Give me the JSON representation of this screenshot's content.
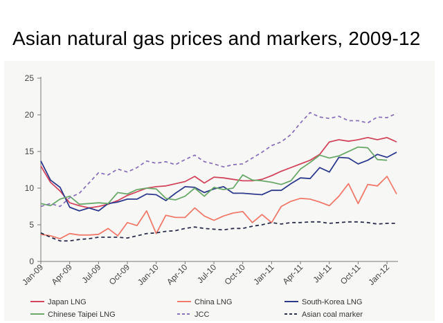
{
  "title": "Asian natural gas prices and markers, 2009-12",
  "chart_data": {
    "type": "line",
    "title": "Asian natural gas prices and markers, 2009-12",
    "xlabel": "",
    "ylabel": "",
    "ylim": [
      0,
      25
    ],
    "yticks": [
      0,
      5,
      10,
      15,
      20,
      25
    ],
    "grid": false,
    "legend_position": "bottom",
    "categories": [
      "Jan-09",
      "Feb-09",
      "Mar-09",
      "Apr-09",
      "May-09",
      "Jun-09",
      "Jul-09",
      "Aug-09",
      "Sep-09",
      "Oct-09",
      "Nov-09",
      "Dec-09",
      "Jan-10",
      "Feb-10",
      "Mar-10",
      "Apr-10",
      "May-10",
      "Jun-10",
      "Jul-10",
      "Aug-10",
      "Sep-10",
      "Oct-10",
      "Nov-10",
      "Dec-10",
      "Jan-11",
      "Feb-11",
      "Mar-11",
      "Apr-11",
      "May-11",
      "Jun-11",
      "Jul-11",
      "Aug-11",
      "Sep-11",
      "Oct-11",
      "Nov-11",
      "Dec-11",
      "Jan-12",
      "Feb-12"
    ],
    "tick_labels": [
      "Jan-09",
      "Apr-09",
      "Jul-09",
      "Oct-09",
      "Jan-10",
      "Apr-10",
      "Jul-10",
      "Oct-10",
      "Jan-11",
      "Apr-11",
      "Jul-11",
      "Oct-11",
      "Jan-12"
    ],
    "series": [
      {
        "name": "Japan LNG",
        "color": "#d2455d",
        "dash": "solid",
        "values": [
          13.0,
          10.8,
          9.6,
          8.0,
          7.6,
          7.3,
          7.5,
          7.8,
          8.3,
          9.0,
          9.5,
          10.0,
          10.2,
          10.3,
          10.6,
          10.9,
          11.6,
          10.7,
          11.5,
          11.4,
          11.2,
          11.0,
          11.0,
          11.2,
          11.7,
          12.3,
          12.8,
          13.3,
          13.8,
          14.6,
          16.3,
          16.6,
          16.4,
          16.6,
          16.9,
          16.6,
          16.9,
          16.3
        ]
      },
      {
        "name": "China LNG",
        "color": "#f07a6b",
        "dash": "solid",
        "values": [
          3.7,
          3.5,
          3.1,
          3.8,
          3.6,
          3.6,
          3.7,
          4.5,
          3.5,
          5.3,
          4.9,
          6.9,
          3.8,
          6.3,
          6.0,
          6.0,
          7.3,
          6.2,
          5.6,
          6.2,
          6.6,
          6.8,
          5.3,
          6.4,
          5.3,
          7.5,
          8.2,
          8.6,
          8.5,
          8.1,
          7.6,
          8.9,
          10.6,
          7.9,
          10.5,
          10.3,
          11.6,
          9.2
        ]
      },
      {
        "name": "South-Korea LNG",
        "color": "#2d3a8c",
        "dash": "solid",
        "values": [
          13.7,
          11.1,
          10.1,
          7.4,
          6.9,
          7.3,
          6.9,
          7.9,
          8.1,
          8.5,
          8.5,
          9.2,
          9.1,
          8.3,
          9.3,
          10.2,
          10.1,
          9.4,
          9.9,
          10.2,
          9.3,
          9.3,
          9.2,
          9.1,
          9.7,
          9.7,
          10.6,
          11.4,
          11.3,
          12.8,
          12.2,
          14.2,
          14.1,
          13.3,
          13.8,
          14.6,
          14.2,
          14.9
        ]
      },
      {
        "name": "Chinese Taipei LNG",
        "color": "#6aa96a",
        "dash": "solid",
        "values": [
          7.9,
          7.6,
          8.5,
          8.9,
          7.8,
          7.9,
          8.0,
          7.9,
          9.4,
          9.2,
          9.8,
          10.0,
          9.9,
          8.6,
          8.4,
          8.9,
          10.0,
          8.9,
          10.1,
          9.8,
          10.0,
          11.8,
          11.1,
          11.0,
          10.8,
          10.5,
          11.0,
          12.6,
          13.5,
          14.5,
          14.1,
          14.4,
          15.0,
          15.6,
          15.5,
          13.9,
          13.8,
          null
        ]
      },
      {
        "name": "JCC",
        "color": "#8a73b8",
        "dash": "dashed",
        "values": [
          7.5,
          7.9,
          7.5,
          8.7,
          9.3,
          10.7,
          12.1,
          11.8,
          12.6,
          12.2,
          12.8,
          13.7,
          13.4,
          13.6,
          13.2,
          13.9,
          14.5,
          13.6,
          13.3,
          12.9,
          13.2,
          13.3,
          14.1,
          14.9,
          15.8,
          16.3,
          17.3,
          18.9,
          20.3,
          19.7,
          19.5,
          19.8,
          19.2,
          19.2,
          18.9,
          19.7,
          19.6,
          20.2
        ]
      },
      {
        "name": "Asian coal marker",
        "color": "#2b2e4a",
        "dash": "dashed",
        "values": [
          3.9,
          3.3,
          2.8,
          2.8,
          3.0,
          3.1,
          3.3,
          3.3,
          3.3,
          3.2,
          3.5,
          3.8,
          3.9,
          4.1,
          4.2,
          4.5,
          4.7,
          4.5,
          4.4,
          4.3,
          4.5,
          4.5,
          4.8,
          5.0,
          5.3,
          5.1,
          5.3,
          5.3,
          5.4,
          5.4,
          5.2,
          5.3,
          5.4,
          5.4,
          5.3,
          5.1,
          5.2,
          5.2
        ]
      }
    ]
  }
}
